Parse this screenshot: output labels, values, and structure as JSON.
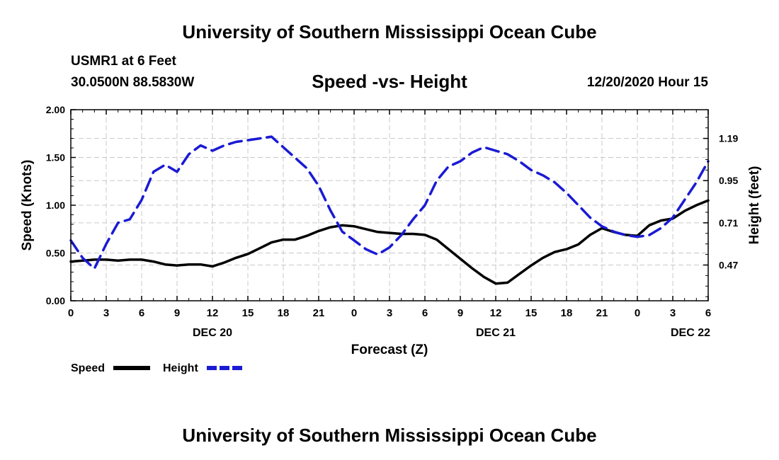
{
  "header": {
    "title": "University of Southern Mississippi Ocean Cube",
    "station": "USMR1 at 6 Feet",
    "coordinates": "30.0500N 88.5830W",
    "valid_time": "12/20/2020 Hour 15"
  },
  "footer": {
    "title": "University of Southern Mississippi Ocean Cube"
  },
  "colors": {
    "speed": "#000000",
    "height": "#1a1ad4",
    "grid": "#c8c8c8"
  },
  "chart_data": {
    "type": "line",
    "title": "Speed -vs- Height",
    "xlabel": "Forecast (Z)",
    "ylabel": "Speed (Knots)",
    "y2label": "Height (feet)",
    "xlim": [
      0,
      54
    ],
    "ylim": [
      0,
      2
    ],
    "y2lim": [
      0.2667,
      1.3533
    ],
    "x_ticks": [
      0,
      3,
      6,
      9,
      12,
      15,
      18,
      21,
      24,
      27,
      30,
      33,
      36,
      39,
      42,
      45,
      48,
      51,
      54
    ],
    "x_tick_labels": [
      "0",
      "3",
      "6",
      "9",
      "12",
      "15",
      "18",
      "21",
      "0",
      "3",
      "6",
      "9",
      "12",
      "15",
      "18",
      "21",
      "0",
      "3",
      "6"
    ],
    "day_labels": [
      {
        "x": 12,
        "label": "DEC 20"
      },
      {
        "x": 36,
        "label": "DEC 21"
      },
      {
        "x": 52.5,
        "label": "DEC 22"
      }
    ],
    "y_ticks": [
      0,
      0.5,
      1.0,
      1.5,
      2.0
    ],
    "y_tick_labels": [
      "0.00",
      "0.50",
      "1.00",
      "1.50",
      "2.00"
    ],
    "y2_ticks": [
      0.47,
      0.71,
      0.95,
      1.19
    ],
    "y2_tick_labels": [
      "0.47",
      "0.71",
      "0.95",
      "1.19"
    ],
    "grid": true,
    "series": [
      {
        "name": "Speed",
        "axis": "left",
        "style": "solid",
        "x": [
          0,
          1,
          2,
          3,
          4,
          5,
          6,
          7,
          8,
          9,
          10,
          11,
          12,
          13,
          14,
          15,
          16,
          17,
          18,
          19,
          20,
          21,
          22,
          23,
          24,
          25,
          26,
          27,
          28,
          29,
          30,
          31,
          32,
          33,
          34,
          35,
          36,
          37,
          38,
          39,
          40,
          41,
          42,
          43,
          44,
          45,
          46,
          47,
          48,
          49,
          50,
          51,
          52,
          53,
          54
        ],
        "values": [
          0.41,
          0.42,
          0.43,
          0.43,
          0.42,
          0.43,
          0.43,
          0.41,
          0.38,
          0.37,
          0.38,
          0.38,
          0.36,
          0.4,
          0.45,
          0.49,
          0.55,
          0.61,
          0.64,
          0.64,
          0.68,
          0.73,
          0.77,
          0.79,
          0.78,
          0.75,
          0.72,
          0.71,
          0.7,
          0.7,
          0.69,
          0.64,
          0.54,
          0.44,
          0.34,
          0.25,
          0.18,
          0.19,
          0.28,
          0.37,
          0.45,
          0.51,
          0.54,
          0.59,
          0.69,
          0.76,
          0.72,
          0.69,
          0.68,
          0.79,
          0.84,
          0.86,
          0.94,
          1.0,
          1.05
        ]
      },
      {
        "name": "Height",
        "axis": "right",
        "style": "dashed",
        "x": [
          0,
          1,
          2,
          3,
          4,
          5,
          6,
          7,
          8,
          9,
          10,
          11,
          12,
          13,
          14,
          15,
          16,
          17,
          18,
          19,
          20,
          21,
          22,
          23,
          24,
          25,
          26,
          27,
          28,
          29,
          30,
          31,
          32,
          33,
          34,
          35,
          36,
          37,
          38,
          39,
          40,
          41,
          42,
          43,
          44,
          45,
          46,
          47,
          48,
          49,
          50,
          51,
          52,
          53,
          54
        ],
        "values": [
          0.61,
          0.51,
          0.45,
          0.59,
          0.71,
          0.73,
          0.84,
          1.0,
          1.04,
          1.0,
          1.1,
          1.15,
          1.12,
          1.15,
          1.17,
          1.18,
          1.19,
          1.2,
          1.14,
          1.08,
          1.02,
          0.92,
          0.78,
          0.66,
          0.61,
          0.56,
          0.53,
          0.57,
          0.64,
          0.73,
          0.81,
          0.95,
          1.03,
          1.06,
          1.11,
          1.14,
          1.12,
          1.1,
          1.06,
          1.01,
          0.98,
          0.94,
          0.88,
          0.81,
          0.74,
          0.69,
          0.66,
          0.64,
          0.63,
          0.64,
          0.68,
          0.74,
          0.84,
          0.94,
          1.06
        ]
      }
    ],
    "legend": {
      "placement": "bottom-left",
      "entries": [
        {
          "label": "Speed",
          "style": "solid"
        },
        {
          "label": "Height",
          "style": "dashed"
        }
      ]
    }
  }
}
